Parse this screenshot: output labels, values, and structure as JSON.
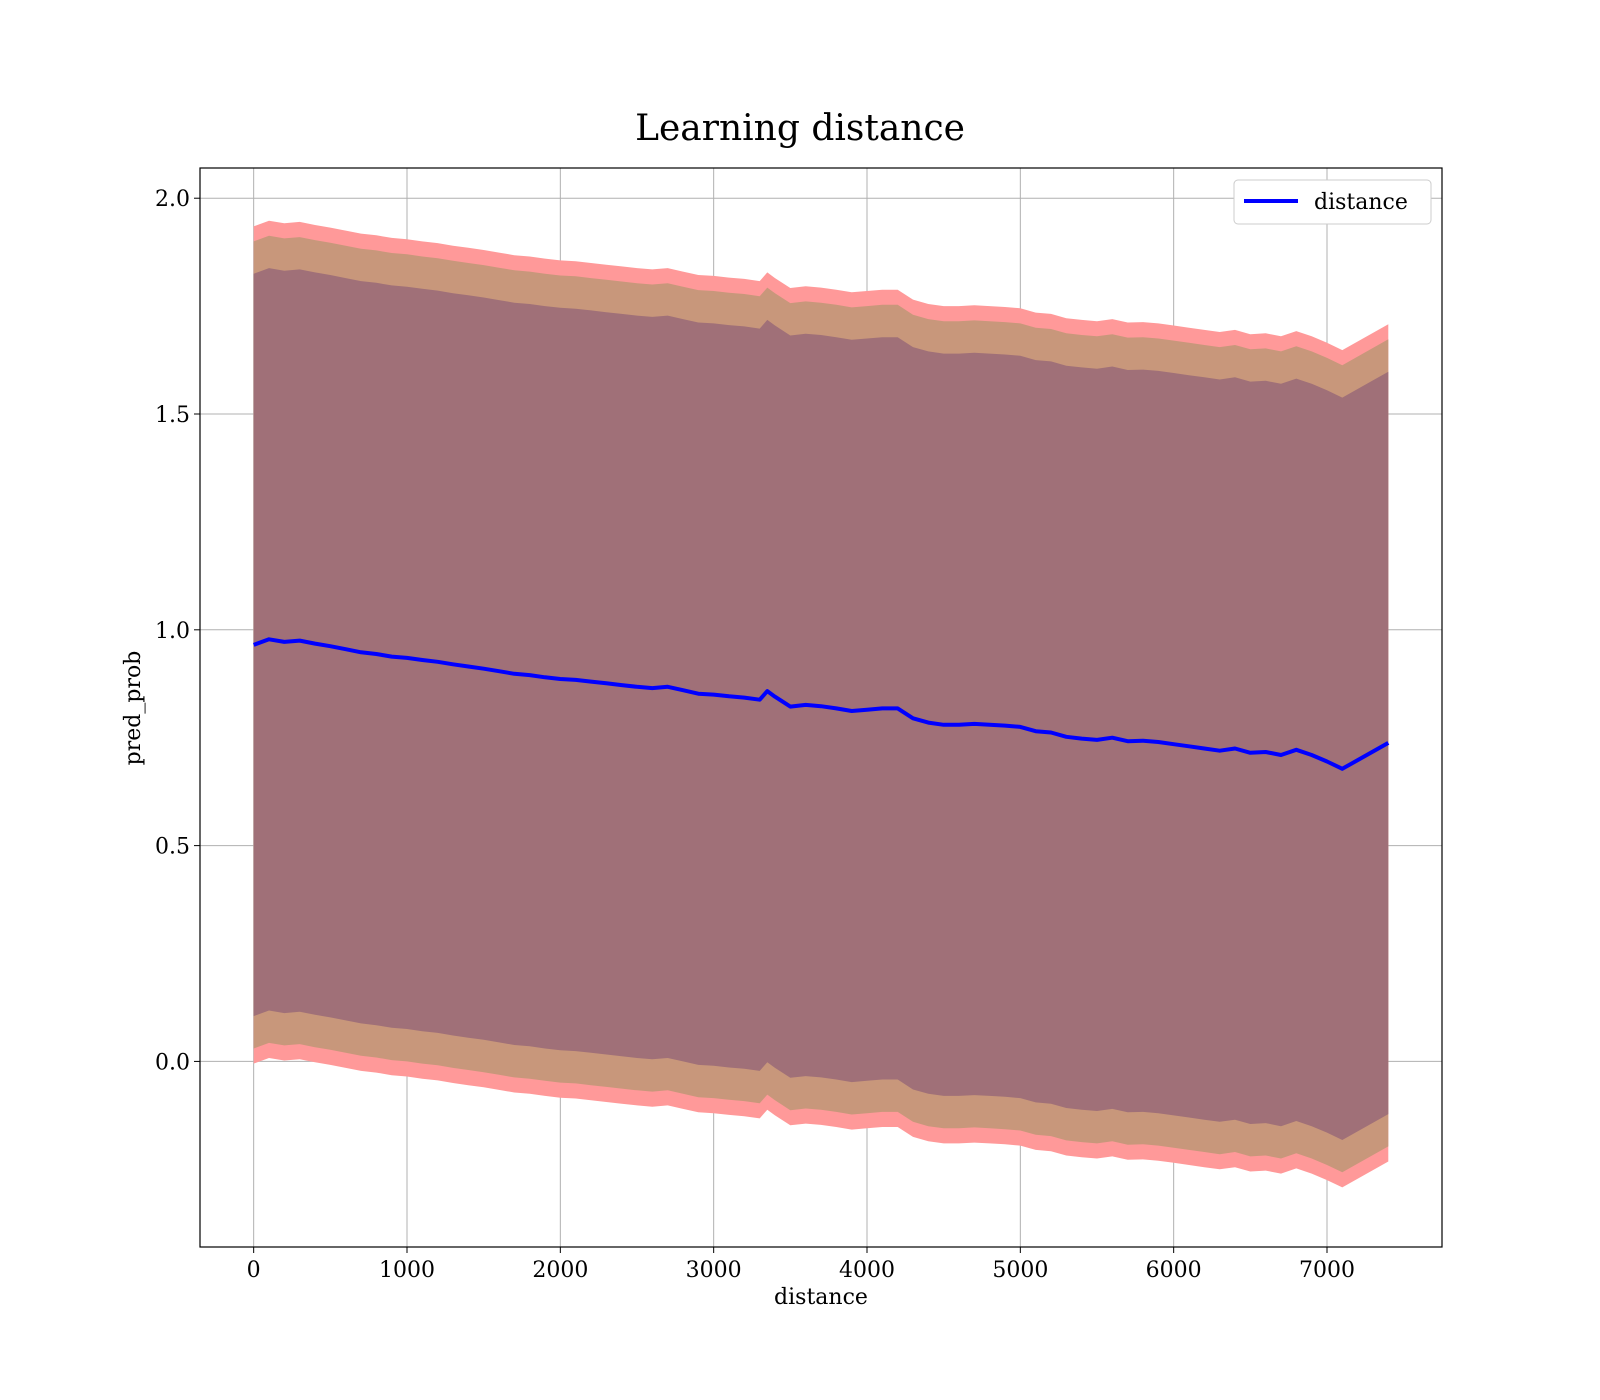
{
  "chart_data": {
    "type": "line",
    "title": "Learning distance",
    "xlabel": "distance",
    "ylabel": "pred_prob",
    "xlim": [
      -350,
      7750
    ],
    "ylim": [
      -0.43,
      2.07
    ],
    "xticks": [
      0,
      1000,
      2000,
      3000,
      4000,
      5000,
      6000,
      7000
    ],
    "yticks": [
      0.0,
      0.5,
      1.0,
      1.5,
      2.0
    ],
    "xtick_labels": [
      "0",
      "1000",
      "2000",
      "3000",
      "4000",
      "5000",
      "6000",
      "7000"
    ],
    "ytick_labels": [
      "0.0",
      "0.5",
      "1.0",
      "1.5",
      "2.0"
    ],
    "grid": true,
    "legend_position": "top-right",
    "colors": {
      "line": "#0000ff",
      "band_outer": "#ff9999",
      "band_middle": "#c8977b",
      "band_inner": "#a07078",
      "grid": "#b0b0b0"
    },
    "series": [
      {
        "name": "distance",
        "x": [
          0,
          100,
          200,
          300,
          400,
          500,
          600,
          700,
          800,
          900,
          1000,
          1100,
          1200,
          1300,
          1400,
          1500,
          1600,
          1700,
          1800,
          1900,
          2000,
          2100,
          2200,
          2300,
          2400,
          2500,
          2600,
          2700,
          2800,
          2900,
          3000,
          3100,
          3200,
          3300,
          3350,
          3400,
          3500,
          3600,
          3700,
          3800,
          3900,
          4000,
          4100,
          4200,
          4300,
          4400,
          4500,
          4600,
          4700,
          4800,
          4900,
          5000,
          5100,
          5200,
          5300,
          5400,
          5500,
          5600,
          5700,
          5800,
          5900,
          6000,
          6100,
          6200,
          6300,
          6400,
          6500,
          6600,
          6700,
          6800,
          6900,
          7000,
          7100,
          7400
        ],
        "y": [
          0.965,
          0.978,
          0.972,
          0.975,
          0.968,
          0.962,
          0.955,
          0.948,
          0.944,
          0.938,
          0.935,
          0.93,
          0.926,
          0.92,
          0.915,
          0.91,
          0.904,
          0.898,
          0.895,
          0.89,
          0.886,
          0.884,
          0.88,
          0.876,
          0.872,
          0.868,
          0.865,
          0.868,
          0.86,
          0.852,
          0.85,
          0.846,
          0.843,
          0.838,
          0.858,
          0.845,
          0.822,
          0.826,
          0.823,
          0.818,
          0.812,
          0.815,
          0.818,
          0.818,
          0.795,
          0.785,
          0.78,
          0.78,
          0.782,
          0.78,
          0.778,
          0.775,
          0.765,
          0.762,
          0.752,
          0.748,
          0.745,
          0.75,
          0.742,
          0.743,
          0.74,
          0.735,
          0.73,
          0.725,
          0.72,
          0.725,
          0.715,
          0.717,
          0.71,
          0.722,
          0.71,
          0.695,
          0.678,
          0.738
        ]
      }
    ],
    "bands": {
      "outer_half_width": 0.97,
      "middle_half_width": 0.935,
      "inner_half_width": 0.86
    }
  }
}
